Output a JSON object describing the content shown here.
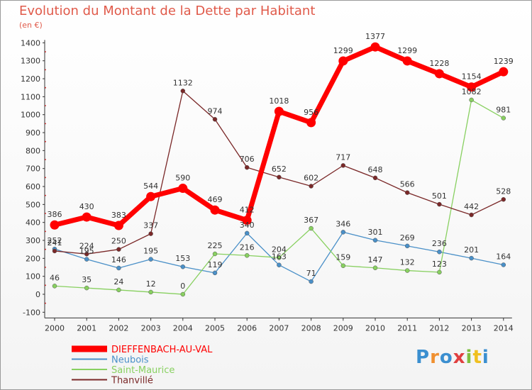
{
  "title": "Evolution du Montant de la Dette par Habitant",
  "unit": "(en €)",
  "brand": {
    "letters": [
      "P",
      "r",
      "o",
      "x",
      "i",
      "t",
      "i"
    ],
    "colors": [
      "#3b8fd0",
      "#f09030",
      "#3b8fd0",
      "#e04040",
      "#80c040",
      "#f0c020",
      "#3b8fd0"
    ]
  },
  "chart_data": {
    "type": "line",
    "title": "Evolution du Montant de la Dette par Habitant",
    "xlabel": "",
    "ylabel": "(en €)",
    "x": [
      "2000",
      "2001",
      "2002",
      "2003",
      "2004",
      "2005",
      "2006",
      "2007",
      "2008",
      "2009",
      "2010",
      "2011",
      "2012",
      "2013",
      "2014"
    ],
    "ylim": [
      -100,
      1400
    ],
    "yticks": [
      -100,
      0,
      100,
      200,
      300,
      400,
      500,
      600,
      700,
      800,
      900,
      1000,
      1100,
      1200,
      1300,
      1400
    ],
    "grid": false,
    "legend_position": "bottom-left",
    "series": [
      {
        "name": "DIEFFENBACH-AU-VAL",
        "color": "#ff0000",
        "highlight": true,
        "values": [
          386,
          430,
          383,
          544,
          590,
          469,
          412,
          1018,
          956,
          1299,
          1377,
          1299,
          1228,
          1154,
          1239
        ]
      },
      {
        "name": "Neubois",
        "color": "#4a90c8",
        "highlight": false,
        "values": [
          252,
          195,
          146,
          195,
          153,
          119,
          340,
          163,
          71,
          346,
          301,
          269,
          236,
          201,
          164
        ]
      },
      {
        "name": "Saint-Maurice",
        "color": "#88d060",
        "highlight": false,
        "values": [
          46,
          35,
          24,
          12,
          0,
          225,
          216,
          204,
          367,
          159,
          147,
          132,
          123,
          1082,
          981
        ]
      },
      {
        "name": "Thanvillé",
        "color": "#7a2828",
        "highlight": false,
        "values": [
          241,
          224,
          250,
          337,
          1132,
          974,
          706,
          652,
          602,
          717,
          648,
          566,
          501,
          442,
          528
        ]
      }
    ]
  }
}
